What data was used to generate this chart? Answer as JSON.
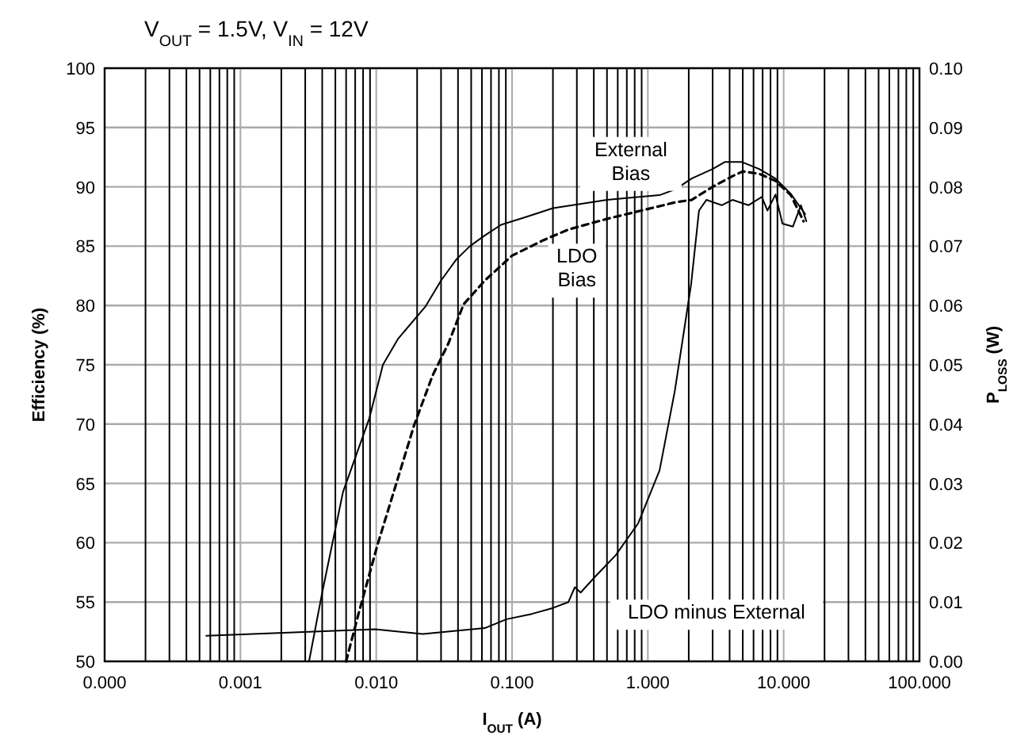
{
  "chart_data": {
    "type": "line",
    "title": "V$_{OUT}$ = 1.5V, V$_{IN}$ = 12V",
    "xlabel": "I$_{OUT}$ (A)",
    "ylabel": "Efficiency (%)",
    "y2label": "P$_{LOSS}$ (W)",
    "log": "x",
    "grid": true,
    "xlim": [
      0.0001,
      100
    ],
    "ylim": [
      50,
      100
    ],
    "y2lim": [
      0,
      0.1
    ],
    "xticks": [
      {
        "value": 0.0001,
        "label": "0.000"
      },
      {
        "value": 0.0002,
        "label": null
      },
      {
        "value": 0.0003,
        "label": null
      },
      {
        "value": 0.0004,
        "label": null
      },
      {
        "value": 0.0005,
        "label": null
      },
      {
        "value": 0.0006,
        "label": null
      },
      {
        "value": 0.0007,
        "label": null
      },
      {
        "value": 0.0008,
        "label": null
      },
      {
        "value": 0.0009,
        "label": null
      },
      {
        "value": 0.001,
        "label": "0.001"
      },
      {
        "value": 0.002,
        "label": null
      },
      {
        "value": 0.003,
        "label": null
      },
      {
        "value": 0.004,
        "label": null
      },
      {
        "value": 0.005,
        "label": null
      },
      {
        "value": 0.006,
        "label": null
      },
      {
        "value": 0.007,
        "label": null
      },
      {
        "value": 0.008,
        "label": null
      },
      {
        "value": 0.009,
        "label": null
      },
      {
        "value": 0.01,
        "label": "0.010"
      },
      {
        "value": 0.02,
        "label": null
      },
      {
        "value": 0.03,
        "label": null
      },
      {
        "value": 0.04,
        "label": null
      },
      {
        "value": 0.05,
        "label": null
      },
      {
        "value": 0.06,
        "label": null
      },
      {
        "value": 0.07,
        "label": null
      },
      {
        "value": 0.08,
        "label": null
      },
      {
        "value": 0.09,
        "label": null
      },
      {
        "value": 0.1,
        "label": "0.100"
      },
      {
        "value": 0.2,
        "label": null
      },
      {
        "value": 0.3,
        "label": null
      },
      {
        "value": 0.4,
        "label": null
      },
      {
        "value": 0.5,
        "label": null
      },
      {
        "value": 0.6,
        "label": null
      },
      {
        "value": 0.7,
        "label": null
      },
      {
        "value": 0.8,
        "label": null
      },
      {
        "value": 0.9,
        "label": null
      },
      {
        "value": 1,
        "label": "1.000"
      },
      {
        "value": 2,
        "label": null
      },
      {
        "value": 3,
        "label": null
      },
      {
        "value": 4,
        "label": null
      },
      {
        "value": 5,
        "label": null
      },
      {
        "value": 6,
        "label": null
      },
      {
        "value": 7,
        "label": null
      },
      {
        "value": 8,
        "label": null
      },
      {
        "value": 9,
        "label": null
      },
      {
        "value": 10,
        "label": "10.000"
      },
      {
        "value": 20,
        "label": null
      },
      {
        "value": 30,
        "label": null
      },
      {
        "value": 40,
        "label": null
      },
      {
        "value": 50,
        "label": null
      },
      {
        "value": 60,
        "label": null
      },
      {
        "value": 70,
        "label": null
      },
      {
        "value": 80,
        "label": null
      },
      {
        "value": 90,
        "label": null
      },
      {
        "value": 100,
        "label": "100.000"
      }
    ],
    "yticks": [
      50,
      55,
      60,
      65,
      70,
      75,
      80,
      85,
      90,
      95,
      100
    ],
    "y2ticks": [
      {
        "value": 0,
        "label": "0.00"
      },
      {
        "value": 0.01,
        "label": "0.01"
      },
      {
        "value": 0.02,
        "label": "0.02"
      },
      {
        "value": 0.03,
        "label": "0.03"
      },
      {
        "value": 0.04,
        "label": "0.04"
      },
      {
        "value": 0.05,
        "label": "0.05"
      },
      {
        "value": 0.06,
        "label": "0.06"
      },
      {
        "value": 0.07,
        "label": "0.07"
      },
      {
        "value": 0.08,
        "label": "0.08"
      },
      {
        "value": 0.09,
        "label": "0.09"
      },
      {
        "value": 0.1,
        "label": "0.10"
      }
    ],
    "marker": "none",
    "series": [
      {
        "name": "External Bias",
        "color": "#000000",
        "line_style": "solid",
        "x": [
          0.0032,
          0.004,
          0.0057,
          0.0089,
          0.0112,
          0.0145,
          0.023,
          0.03,
          0.039,
          0.049,
          0.063,
          0.083,
          0.13,
          0.2,
          0.5,
          1.22,
          1.6,
          2.1,
          3.0,
          3.7,
          4.9,
          6.6,
          8.7,
          11.3,
          13.4,
          14.4
        ],
        "values": [
          50,
          55.8,
          64.3,
          70.5,
          75,
          77.2,
          79.9,
          82.1,
          83.9,
          85,
          85.9,
          86.8,
          87.5,
          88.2,
          88.9,
          89.3,
          89.8,
          90.7,
          91.5,
          92.1,
          92.1,
          91.5,
          90.7,
          89.4,
          88.2,
          87.7
        ]
      },
      {
        "name": "LDO Bias",
        "color": "#000000",
        "line_style": "dashed",
        "x": [
          0.006,
          0.0074,
          0.0102,
          0.0138,
          0.019,
          0.026,
          0.034,
          0.044,
          0.063,
          0.1,
          0.17,
          0.26,
          0.5,
          1.6,
          2.1,
          3.0,
          4.2,
          5.0,
          6.6,
          8.7,
          11.3,
          14.0
        ],
        "values": [
          50,
          54,
          59.8,
          64.7,
          69.9,
          74.1,
          76.8,
          80.1,
          82.1,
          84.2,
          85.5,
          86.4,
          87.3,
          88.7,
          88.9,
          90.0,
          90.9,
          91.3,
          91.1,
          90.5,
          89.3,
          87.1
        ]
      },
      {
        "name": "LDO minus External",
        "color": "#000000",
        "line_style": "solid",
        "axis": "y2",
        "x": [
          0.00056,
          0.0098,
          0.022,
          0.063,
          0.091,
          0.14,
          0.2,
          0.26,
          0.29,
          0.32,
          0.41,
          0.58,
          0.85,
          1.22,
          1.58,
          2.08,
          2.38,
          2.7,
          3.5,
          4.2,
          5.5,
          6.9,
          7.6,
          8.7,
          9.8,
          11.7,
          13.4,
          14.7
        ],
        "values": [
          0.0043,
          0.0054,
          0.0046,
          0.0056,
          0.0071,
          0.008,
          0.009,
          0.01,
          0.0125,
          0.0116,
          0.0143,
          0.0179,
          0.0233,
          0.0322,
          0.0456,
          0.0635,
          0.076,
          0.0778,
          0.0769,
          0.0778,
          0.0769,
          0.0783,
          0.076,
          0.0787,
          0.0738,
          0.0733,
          0.0769,
          0.0742
        ]
      }
    ]
  }
}
